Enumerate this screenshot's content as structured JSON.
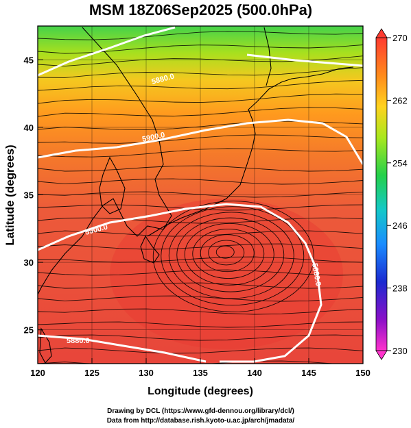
{
  "title": "MSM 18Z06Sep2025 (500.0hPa)",
  "axes": {
    "xlabel": "Longitude (degrees)",
    "ylabel": "Latitude  (degrees)",
    "xticks": [
      120,
      125,
      130,
      135,
      140,
      145,
      150
    ],
    "yticks": [
      25,
      30,
      35,
      40,
      45
    ],
    "xlim": [
      120,
      150
    ],
    "ylim": [
      22.5,
      47.5
    ]
  },
  "colorbar": {
    "min_label": "230",
    "max_label": "270",
    "ticks": [
      "270",
      "262",
      "254",
      "246",
      "238",
      "230"
    ],
    "colors": [
      "#ff3b30",
      "#ff8a1c",
      "#ffd21f",
      "#a8e81e",
      "#24d04a",
      "#14c8c8",
      "#1a8cff",
      "#1b2ad0",
      "#8a10c8",
      "#ff33cc"
    ]
  },
  "contours": [
    {
      "label": "5880.0"
    },
    {
      "label": "5900.0"
    },
    {
      "label": "5900.0"
    },
    {
      "label": "5880.0"
    },
    {
      "label": "5880.0"
    }
  ],
  "colors": {
    "field_low_lat": "#e8453a",
    "field_mid": "#ff8a1c",
    "field_high_lat": "#44d24a"
  },
  "footer": {
    "line1": "Drawing by DCL (https://www.gfd-dennou.org/library/dcl/)",
    "line2": "Data from http://database.rish.kyoto-u.ac.jp/arch/jmadata/"
  }
}
